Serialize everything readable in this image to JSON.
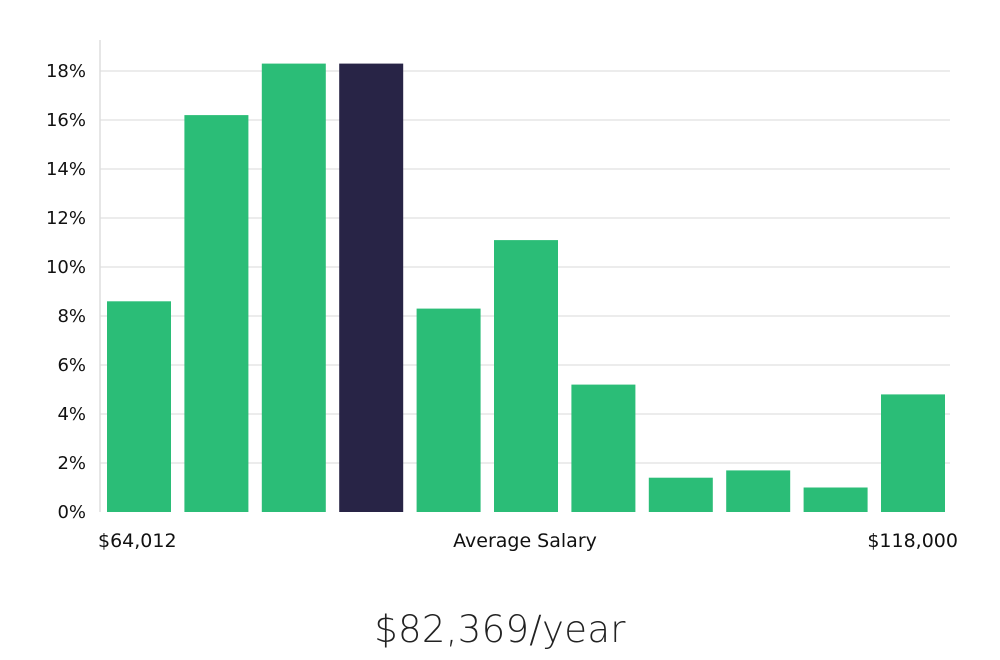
{
  "chart_data": {
    "type": "bar",
    "title": "",
    "xlabel": "Average Salary",
    "ylabel": "",
    "x_min_label": "$64,012",
    "x_max_label": "$118,000",
    "ylim": [
      0,
      19
    ],
    "y_ticks": [
      0,
      2,
      4,
      6,
      8,
      10,
      12,
      14,
      16,
      18
    ],
    "y_tick_labels": [
      "0%",
      "2%",
      "4%",
      "6%",
      "8%",
      "10%",
      "12%",
      "14%",
      "16%",
      "18%"
    ],
    "values": [
      8.6,
      16.2,
      18.3,
      18.3,
      8.3,
      11.1,
      5.2,
      1.4,
      1.7,
      1.0,
      4.8
    ],
    "highlight_index": 3,
    "grid": true,
    "colors": {
      "bar": "#2bbd77",
      "highlight": "#282446",
      "grid": "#e6e6e6",
      "axis": "#dddddd"
    }
  },
  "caption": {
    "salary": "$82,369/year"
  }
}
